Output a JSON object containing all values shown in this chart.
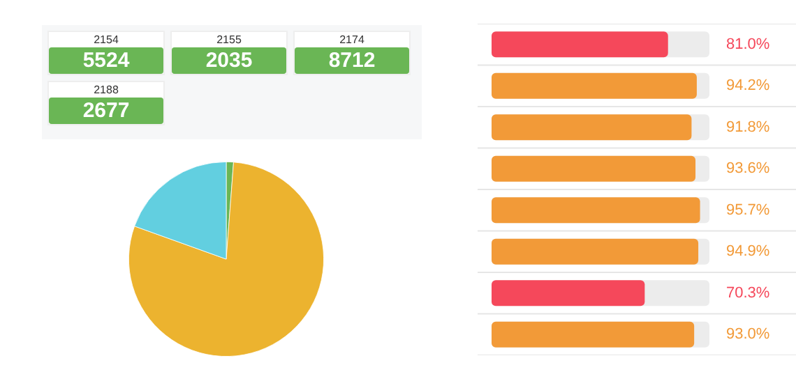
{
  "chart_data": [
    {
      "type": "other",
      "categories": [
        "2154",
        "2155",
        "2174",
        "2188"
      ],
      "values": [
        5524,
        2035,
        8712,
        2677
      ],
      "color": "#6ab655",
      "data_labels": true
    },
    {
      "type": "pie",
      "categories": [
        null,
        null,
        null
      ],
      "values": [
        1.2,
        79.3,
        19.5
      ],
      "colors": [
        "#6ab655",
        "#ecb32f",
        "#62cfe0"
      ]
    },
    {
      "type": "bar",
      "orientation": "horizontal",
      "categories": [
        null,
        null,
        null,
        null,
        null,
        null,
        null,
        null
      ],
      "values": [
        81.0,
        94.2,
        91.8,
        93.6,
        95.7,
        94.9,
        70.3,
        93.0
      ],
      "value_labels": [
        "81.0%",
        "94.2%",
        "91.8%",
        "93.6%",
        "95.7%",
        "94.9%",
        "70.3%",
        "93.0%"
      ],
      "colors": [
        "#f5485b",
        "#f29a38",
        "#f29a38",
        "#f29a38",
        "#f29a38",
        "#f29a38",
        "#f5485b",
        "#f29a38"
      ],
      "xlim": [
        0,
        100
      ],
      "tick_labels": false,
      "data_labels": true
    }
  ]
}
